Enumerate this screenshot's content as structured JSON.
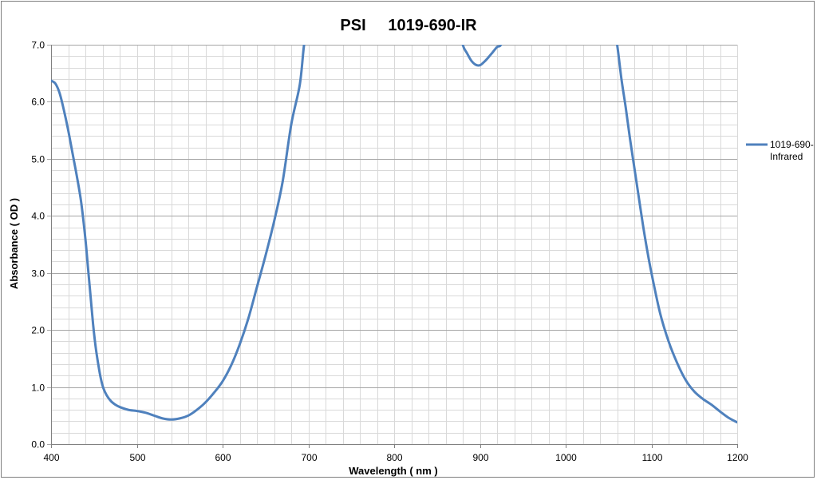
{
  "chart_data": {
    "type": "line",
    "title": "PSI     1019-690-IR",
    "xlabel": "Wavelength ( nm )",
    "ylabel": "Absorbance ( OD )",
    "xlim": [
      400,
      1200
    ],
    "ylim": [
      0,
      7
    ],
    "x_major_step": 100,
    "x_minor_step": 20,
    "y_major_step": 1,
    "y_minor_step": 0.2,
    "x_tick_labels": [
      "400",
      "500",
      "600",
      "700",
      "800",
      "900",
      "1000",
      "1100",
      "1200"
    ],
    "y_tick_labels": [
      "0.0",
      "1.0",
      "2.0",
      "3.0",
      "4.0",
      "5.0",
      "6.0",
      "7.0"
    ],
    "grid": true,
    "legend_position": "right",
    "legend_lines": [
      "1019-690-",
      "Infrared"
    ],
    "series_color": "#4F81BD",
    "series": [
      {
        "name": "1019-690-Infrared",
        "x": [
          400,
          405,
          410,
          415,
          420,
          425,
          430,
          435,
          440,
          443,
          446,
          449,
          452,
          455,
          458,
          461,
          465,
          470,
          475,
          480,
          490,
          500,
          510,
          520,
          530,
          540,
          550,
          560,
          570,
          580,
          590,
          600,
          610,
          620,
          630,
          640,
          650,
          660,
          670,
          680,
          690,
          695,
          700
        ],
        "y": [
          6.37,
          6.32,
          6.15,
          5.85,
          5.5,
          5.1,
          4.7,
          4.25,
          3.6,
          3.1,
          2.6,
          2.1,
          1.7,
          1.4,
          1.15,
          0.98,
          0.85,
          0.75,
          0.69,
          0.65,
          0.6,
          0.58,
          0.55,
          0.5,
          0.45,
          0.43,
          0.45,
          0.5,
          0.6,
          0.73,
          0.9,
          1.1,
          1.38,
          1.75,
          2.2,
          2.75,
          3.3,
          3.9,
          4.6,
          5.6,
          6.3,
          7.0,
          7.4
        ]
      },
      {
        "name": "1019-690-Infrared",
        "x": [
          875,
          880,
          885,
          890,
          895,
          900,
          905,
          910,
          915,
          920,
          925,
          930
        ],
        "y": [
          7.4,
          7.0,
          6.85,
          6.72,
          6.65,
          6.64,
          6.7,
          6.78,
          6.87,
          6.96,
          7.02,
          7.4
        ]
      },
      {
        "name": "1019-690-Infrared",
        "x": [
          1055,
          1060,
          1065,
          1070,
          1075,
          1080,
          1085,
          1090,
          1095,
          1100,
          1110,
          1120,
          1130,
          1140,
          1150,
          1160,
          1170,
          1180,
          1190,
          1200
        ],
        "y": [
          7.4,
          7.0,
          6.4,
          5.9,
          5.35,
          4.85,
          4.35,
          3.85,
          3.4,
          3.0,
          2.3,
          1.8,
          1.42,
          1.12,
          0.92,
          0.79,
          0.69,
          0.57,
          0.46,
          0.38
        ]
      }
    ]
  }
}
